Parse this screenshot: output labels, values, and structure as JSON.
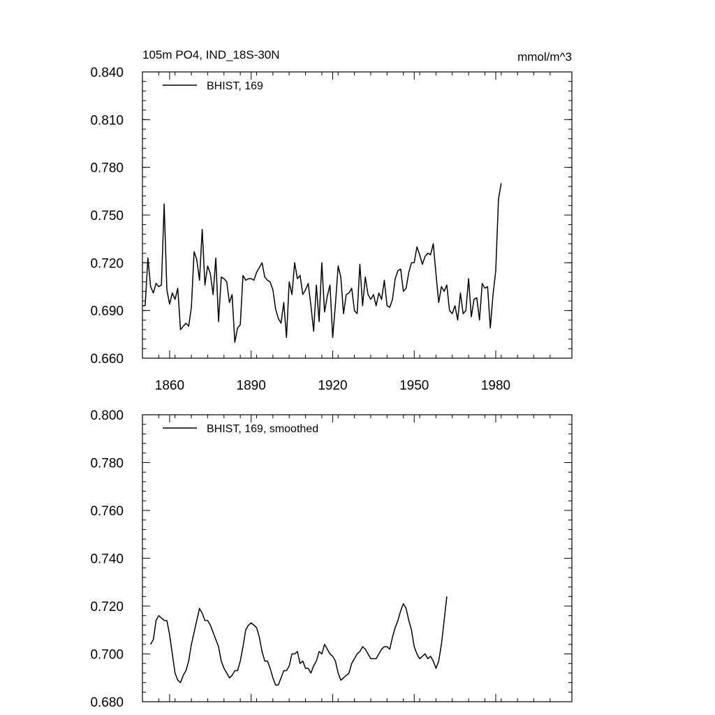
{
  "chart_data": [
    {
      "type": "line",
      "title": "105m PO4, IND_18S-30N",
      "units": "mmol/m^3",
      "xlim": [
        1850,
        2008
      ],
      "ylim": [
        0.66,
        0.84
      ],
      "yticks": [
        "0.660",
        "0.690",
        "0.720",
        "0.750",
        "0.780",
        "0.810",
        "0.840"
      ],
      "xticks": [
        "1860",
        "1890",
        "1920",
        "1950",
        "1980"
      ],
      "legend_position": "top-left",
      "series": [
        {
          "name": "BHIST, 169",
          "color": "#000000",
          "dash": "solid",
          "x_start": 1850,
          "x_step": 1,
          "values": [
            0.693,
            0.693,
            0.723,
            0.705,
            0.701,
            0.707,
            0.705,
            0.706,
            0.757,
            0.703,
            0.694,
            0.701,
            0.697,
            0.704,
            0.678,
            0.68,
            0.682,
            0.68,
            0.692,
            0.727,
            0.722,
            0.709,
            0.741,
            0.706,
            0.718,
            0.713,
            0.7,
            0.723,
            0.683,
            0.711,
            0.71,
            0.708,
            0.695,
            0.7,
            0.67,
            0.679,
            0.681,
            0.712,
            0.709,
            0.71,
            0.71,
            0.709,
            0.714,
            0.717,
            0.72,
            0.711,
            0.709,
            0.708,
            0.703,
            0.691,
            0.685,
            0.682,
            0.695,
            0.673,
            0.708,
            0.7,
            0.72,
            0.71,
            0.712,
            0.7,
            0.703,
            0.707,
            0.693,
            0.677,
            0.706,
            0.683,
            0.72,
            0.689,
            0.699,
            0.706,
            0.673,
            0.694,
            0.718,
            0.711,
            0.688,
            0.7,
            0.701,
            0.704,
            0.69,
            0.688,
            0.719,
            0.693,
            0.711,
            0.7,
            0.697,
            0.7,
            0.693,
            0.701,
            0.697,
            0.709,
            0.693,
            0.692,
            0.697,
            0.71,
            0.715,
            0.716,
            0.702,
            0.704,
            0.714,
            0.72,
            0.72,
            0.73,
            0.725,
            0.719,
            0.724,
            0.726,
            0.725,
            0.732,
            0.713,
            0.695,
            0.705,
            0.702,
            0.706,
            0.69,
            0.688,
            0.693,
            0.684,
            0.701,
            0.688,
            0.69,
            0.71,
            0.686,
            0.697,
            0.698,
            0.684,
            0.707,
            0.704,
            0.705,
            0.679,
            0.7,
            0.715,
            0.76,
            0.77
          ]
        }
      ]
    },
    {
      "type": "line",
      "xlim": [
        1850,
        2008
      ],
      "ylim": [
        0.68,
        0.8
      ],
      "yticks": [
        "0.680",
        "0.700",
        "0.720",
        "0.740",
        "0.760",
        "0.780",
        "0.800"
      ],
      "legend_position": "top-left",
      "series": [
        {
          "name": "BHIST, 169, smoothed",
          "color": "#000000",
          "dash": "solid",
          "x_start": 1853,
          "x_step": 1,
          "values": [
            0.704,
            0.706,
            0.714,
            0.716,
            0.715,
            0.714,
            0.714,
            0.708,
            0.7,
            0.692,
            0.689,
            0.688,
            0.691,
            0.693,
            0.697,
            0.704,
            0.709,
            0.714,
            0.719,
            0.717,
            0.714,
            0.714,
            0.712,
            0.709,
            0.706,
            0.703,
            0.697,
            0.694,
            0.692,
            0.69,
            0.691,
            0.693,
            0.693,
            0.697,
            0.703,
            0.71,
            0.712,
            0.713,
            0.712,
            0.711,
            0.707,
            0.701,
            0.697,
            0.697,
            0.694,
            0.69,
            0.687,
            0.687,
            0.69,
            0.693,
            0.693,
            0.695,
            0.7,
            0.7,
            0.701,
            0.696,
            0.697,
            0.694,
            0.694,
            0.692,
            0.695,
            0.697,
            0.701,
            0.7,
            0.704,
            0.702,
            0.7,
            0.699,
            0.697,
            0.692,
            0.689,
            0.69,
            0.691,
            0.692,
            0.696,
            0.698,
            0.7,
            0.701,
            0.703,
            0.702,
            0.7,
            0.698,
            0.698,
            0.698,
            0.7,
            0.702,
            0.703,
            0.703,
            0.702,
            0.707,
            0.711,
            0.714,
            0.718,
            0.721,
            0.719,
            0.714,
            0.71,
            0.703,
            0.7,
            0.698,
            0.699,
            0.7,
            0.698,
            0.699,
            0.697,
            0.694,
            0.697,
            0.704,
            0.714,
            0.724
          ]
        }
      ]
    }
  ]
}
